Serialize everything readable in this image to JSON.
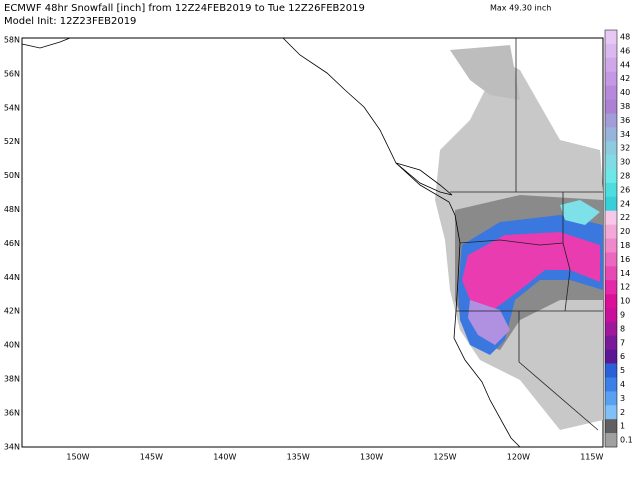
{
  "header": {
    "title": "ECMWF 48hr Snowfall [inch] from 12Z24FEB2019 to Tue 12Z26FEB2019",
    "max": "Max 49.30 inch",
    "init": "Model Init: 12Z23FEB2019"
  },
  "map": {
    "lat_labels": [
      "58N",
      "56N",
      "54N",
      "52N",
      "50N",
      "48N",
      "46N",
      "44N",
      "42N",
      "40N",
      "38N",
      "36N",
      "34N"
    ],
    "lon_labels": [
      "150W",
      "145W",
      "140W",
      "135W",
      "130W",
      "125W",
      "120W",
      "115W"
    ]
  },
  "legend": {
    "labels": [
      48,
      46,
      44,
      42,
      40,
      38,
      36,
      34,
      32,
      30,
      28,
      26,
      24,
      22,
      20,
      18,
      16,
      14,
      12,
      10,
      9,
      8,
      7,
      6,
      5,
      4,
      3,
      2,
      1,
      0.1
    ],
    "colors": [
      "#e7c8f4",
      "#dcb8f0",
      "#d0a8ea",
      "#c498e4",
      "#b888dc",
      "#ac80d4",
      "#a29cd8",
      "#98b4dc",
      "#8ccbe0",
      "#80dce4",
      "#6ce8e8",
      "#4cdede",
      "#38d0d8",
      "#f8c8e8",
      "#f4a8d8",
      "#f088cc",
      "#ec68c0",
      "#e848b4",
      "#e428a8",
      "#dc1098",
      "#c8109c",
      "#a0189c",
      "#7a1a98",
      "#5a1894",
      "#2a60d8",
      "#3a80e8",
      "#58a0f0",
      "#80c0f8",
      "#606060",
      "#a0a0a0"
    ]
  }
}
